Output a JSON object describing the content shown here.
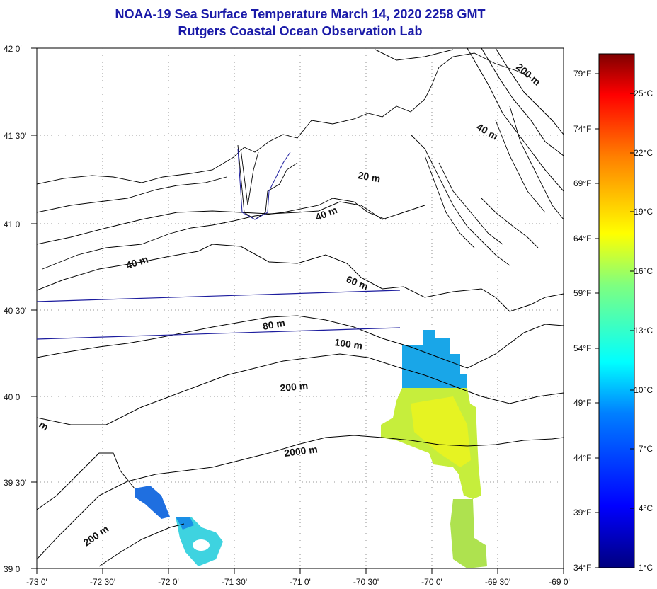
{
  "header": {
    "title_line1": "NOAA-19 Sea Surface Temperature March 14, 2020 2258 GMT",
    "title_line2": "Rutgers Coastal Ocean Observation Lab"
  },
  "map": {
    "lat_labels": [
      "42 0'",
      "41 30'",
      "41 0'",
      "40 30'",
      "40 0'",
      "39 30'",
      "39 0'"
    ],
    "lon_labels": [
      "-73 0'",
      "-72 30'",
      "-72 0'",
      "-71 30'",
      "-71 0'",
      "-70 30'",
      "-70 0'",
      "-69 30'",
      "-69 0'"
    ],
    "depth_labels": [
      "200 m",
      "40 m",
      "20 m",
      "40 m",
      "40 m",
      "60 m",
      "80 m",
      "100 m",
      "200 m",
      "2000 m",
      "200 m",
      "m"
    ]
  },
  "colorbar": {
    "fahrenheit_labels": [
      "79°F",
      "74°F",
      "69°F",
      "64°F",
      "59°F",
      "54°F",
      "49°F",
      "44°F",
      "39°F",
      "34°F"
    ],
    "celsius_labels": [
      "25°C",
      "22°C",
      "19°C",
      "16°C",
      "13°C",
      "10°C",
      "7°C",
      "4°C",
      "1°C"
    ],
    "colors": [
      "#00007f",
      "#0000ff",
      "#007fff",
      "#00ffff",
      "#7fff7f",
      "#ffff00",
      "#ff7f00",
      "#ff0000",
      "#7f0000"
    ]
  }
}
